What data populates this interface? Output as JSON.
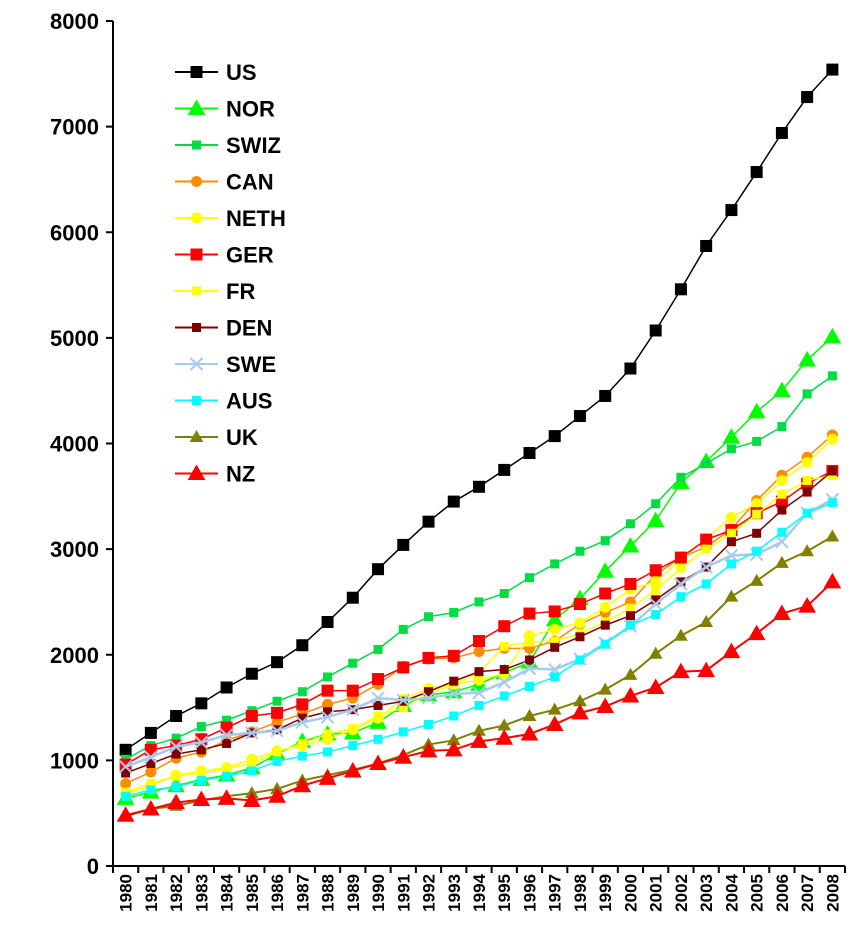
{
  "chart_data": {
    "type": "line",
    "title": "",
    "xlabel": "",
    "ylabel": "",
    "ylim": [
      0,
      8000
    ],
    "yticks": [
      0,
      1000,
      2000,
      3000,
      4000,
      5000,
      6000,
      7000,
      8000
    ],
    "grid": false,
    "legend_position": "top-left",
    "x": [
      "1980",
      "1981",
      "1982",
      "1983",
      "1984",
      "1985",
      "1986",
      "1987",
      "1988",
      "1989",
      "1990",
      "1991",
      "1992",
      "1993",
      "1994",
      "1995",
      "1996",
      "1997",
      "1998",
      "1999",
      "2000",
      "2001",
      "2002",
      "2003",
      "2004",
      "2005",
      "2006",
      "2007",
      "2008"
    ],
    "series": [
      {
        "name": "US",
        "color": "#000000",
        "marker": "square",
        "values": [
          1100,
          1260,
          1420,
          1540,
          1690,
          1820,
          1930,
          2090,
          2310,
          2540,
          2810,
          3040,
          3260,
          3450,
          3590,
          3750,
          3910,
          4070,
          4260,
          4450,
          4710,
          5070,
          5460,
          5870,
          6210,
          6570,
          6940,
          7280,
          7540
        ]
      },
      {
        "name": "NOR",
        "color": "#00ff00",
        "marker": "triangle",
        "values": [
          640,
          700,
          760,
          820,
          860,
          930,
          1060,
          1180,
          1250,
          1260,
          1360,
          1520,
          1620,
          1650,
          1720,
          1830,
          1930,
          2330,
          2530,
          2790,
          3030,
          3270,
          3630,
          3830,
          4060,
          4300,
          4500,
          4790,
          5010
        ]
      },
      {
        "name": "SWIZ",
        "color": "#00dd44",
        "marker": "small-square",
        "values": [
          1010,
          1140,
          1210,
          1320,
          1380,
          1470,
          1560,
          1650,
          1790,
          1920,
          2050,
          2240,
          2360,
          2400,
          2500,
          2580,
          2730,
          2860,
          2980,
          3080,
          3240,
          3430,
          3680,
          3810,
          3950,
          4020,
          4160,
          4470,
          4640
        ]
      },
      {
        "name": "CAN",
        "color": "#ff8c00",
        "marker": "circle",
        "values": [
          780,
          890,
          1020,
          1080,
          1190,
          1270,
          1360,
          1440,
          1530,
          1590,
          1720,
          1890,
          1960,
          1970,
          2030,
          2060,
          2060,
          2130,
          2290,
          2400,
          2500,
          2760,
          2920,
          3020,
          3190,
          3460,
          3700,
          3870,
          4080
        ]
      },
      {
        "name": "NETH",
        "color": "#ffff00",
        "marker": "circle",
        "values": [
          680,
          760,
          860,
          900,
          930,
          1010,
          1090,
          1140,
          1200,
          1290,
          1400,
          1580,
          1680,
          1720,
          1760,
          1820,
          2180,
          2240,
          2300,
          2450,
          2620,
          2690,
          2900,
          3100,
          3300,
          3430,
          3650,
          3820,
          4040
        ]
      },
      {
        "name": "GER",
        "color": "#ff0000",
        "marker": "square",
        "values": [
          960,
          1100,
          1140,
          1200,
          1310,
          1420,
          1450,
          1530,
          1660,
          1660,
          1770,
          1880,
          1970,
          1990,
          2130,
          2270,
          2390,
          2410,
          2480,
          2580,
          2670,
          2800,
          2920,
          3090,
          3180,
          3340,
          3450,
          3620,
          3740
        ]
      },
      {
        "name": "FR",
        "color": "#ffff00",
        "marker": "small-square",
        "values": [
          700,
          780,
          850,
          880,
          920,
          970,
          1080,
          1160,
          1250,
          1300,
          1420,
          1500,
          1630,
          1720,
          1830,
          2080,
          2120,
          2130,
          2200,
          2310,
          2440,
          2610,
          2820,
          3000,
          3150,
          3330,
          3520,
          3650,
          3700
        ]
      },
      {
        "name": "DEN",
        "color": "#800000",
        "marker": "small-square",
        "values": [
          880,
          970,
          1060,
          1100,
          1160,
          1260,
          1290,
          1400,
          1460,
          1480,
          1520,
          1560,
          1650,
          1750,
          1840,
          1860,
          1950,
          2070,
          2170,
          2280,
          2370,
          2520,
          2690,
          2830,
          3070,
          3150,
          3370,
          3540,
          3740
        ]
      },
      {
        "name": "SWE",
        "color": "#a6caf0",
        "marker": "cross",
        "values": [
          940,
          1030,
          1130,
          1170,
          1240,
          1260,
          1280,
          1360,
          1410,
          1480,
          1590,
          1570,
          1590,
          1630,
          1640,
          1740,
          1870,
          1860,
          1960,
          2110,
          2270,
          2480,
          2670,
          2830,
          2940,
          2950,
          3070,
          3340,
          3470
        ]
      },
      {
        "name": "AUS",
        "color": "#00ffff",
        "marker": "small-square",
        "values": [
          660,
          720,
          750,
          810,
          850,
          900,
          990,
          1040,
          1080,
          1140,
          1200,
          1270,
          1340,
          1420,
          1520,
          1610,
          1700,
          1790,
          1950,
          2100,
          2280,
          2380,
          2550,
          2670,
          2860,
          2980,
          3160,
          3340,
          3440
        ]
      },
      {
        "name": "UK",
        "color": "#808000",
        "marker": "small-triangle",
        "values": [
          470,
          540,
          570,
          620,
          660,
          690,
          730,
          810,
          860,
          910,
          970,
          1050,
          1150,
          1190,
          1280,
          1330,
          1420,
          1480,
          1560,
          1670,
          1810,
          2010,
          2180,
          2310,
          2550,
          2700,
          2870,
          2980,
          3120
        ]
      },
      {
        "name": "NZ",
        "color": "#ff0000",
        "marker": "triangle",
        "values": [
          480,
          540,
          600,
          630,
          640,
          620,
          660,
          760,
          830,
          900,
          970,
          1030,
          1090,
          1100,
          1180,
          1210,
          1250,
          1340,
          1450,
          1510,
          1610,
          1690,
          1840,
          1850,
          2030,
          2200,
          2390,
          2460,
          2690
        ]
      }
    ]
  }
}
